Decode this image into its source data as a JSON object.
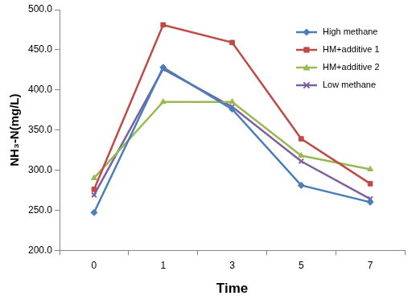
{
  "chart_data": {
    "type": "line",
    "x_label": "Time",
    "y_label": "NH₃-N(mg/L)",
    "categories": [
      "0",
      "1",
      "3",
      "5",
      "7"
    ],
    "series": [
      {
        "name": "High methane",
        "color": "#4a7ebb",
        "marker": "diamond",
        "values": [
          247,
          428,
          376,
          281,
          260
        ]
      },
      {
        "name": "HM+additive 1",
        "color": "#be4b48",
        "marker": "square",
        "values": [
          276,
          481,
          459,
          339,
          283
        ]
      },
      {
        "name": "HM+additive 2",
        "color": "#98b954",
        "marker": "triangle",
        "values": [
          290,
          385,
          385,
          318,
          301
        ]
      },
      {
        "name": "Low methane",
        "color": "#7d60a0",
        "marker": "x",
        "values": [
          269,
          426,
          379,
          311,
          264
        ]
      }
    ],
    "ylim": [
      200,
      500
    ],
    "yticks": [
      {
        "value": 200,
        "label": "200.0"
      },
      {
        "value": 250,
        "label": "250.0"
      },
      {
        "value": 300,
        "label": "300.0"
      },
      {
        "value": 350,
        "label": "350.0"
      },
      {
        "value": 400,
        "label": "400.0"
      },
      {
        "value": 450,
        "label": "450.0"
      },
      {
        "value": 500,
        "label": "500.0"
      }
    ],
    "grid": false,
    "legend": "upper right"
  }
}
